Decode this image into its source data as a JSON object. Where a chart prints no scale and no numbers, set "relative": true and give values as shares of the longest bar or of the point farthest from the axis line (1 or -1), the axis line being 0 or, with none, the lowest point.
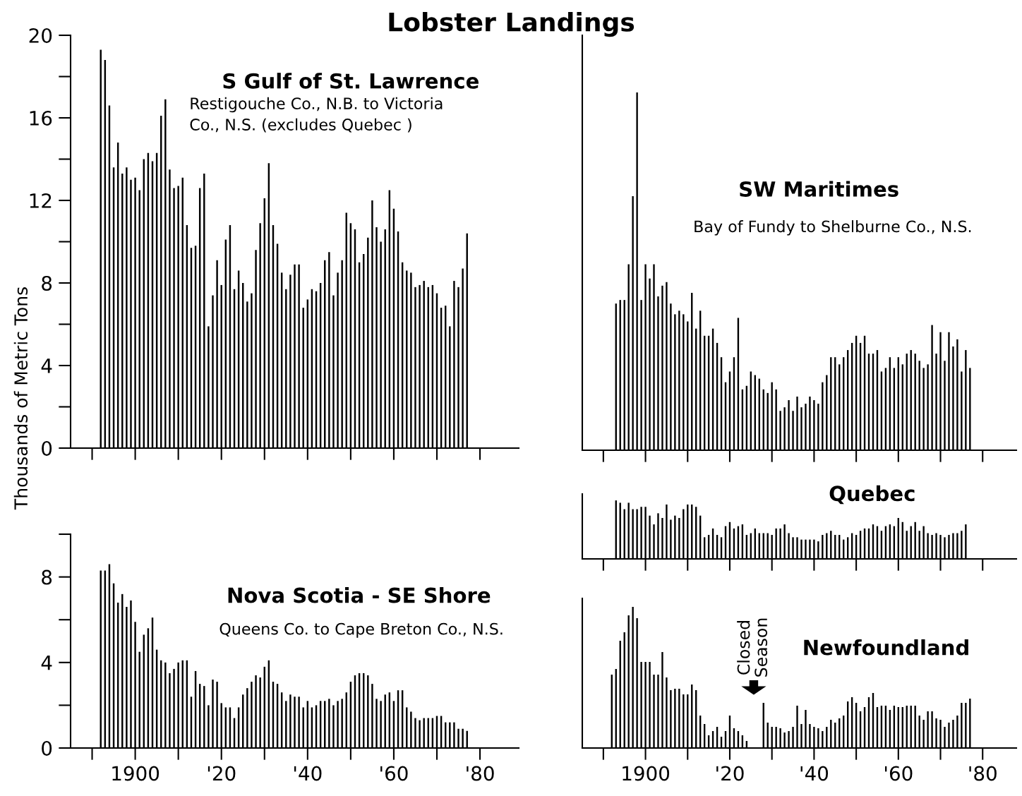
{
  "chart_data": [
    {
      "type": "bar",
      "title": "S Gulf of St. Lawrence",
      "subtitle": "Restigouche Co., N.B. to Victoria\nCo., N.S. (excludes Quebec )",
      "ylabel": "Thousands of Metric Tons",
      "annotations": [
        "Lobster Landings"
      ],
      "color": "#000000",
      "x": [
        1892,
        1893,
        1894,
        1895,
        1896,
        1897,
        1898,
        1899,
        1900,
        1901,
        1902,
        1903,
        1904,
        1905,
        1906,
        1907,
        1908,
        1909,
        1910,
        1911,
        1912,
        1913,
        1914,
        1915,
        1916,
        1917,
        1918,
        1919,
        1920,
        1921,
        1922,
        1923,
        1924,
        1925,
        1926,
        1927,
        1928,
        1929,
        1930,
        1931,
        1932,
        1933,
        1934,
        1935,
        1936,
        1937,
        1938,
        1939,
        1940,
        1941,
        1942,
        1943,
        1944,
        1945,
        1946,
        1947,
        1948,
        1949,
        1950,
        1951,
        1952,
        1953,
        1954,
        1955,
        1956,
        1957,
        1958,
        1959,
        1960,
        1961,
        1962,
        1963,
        1964,
        1965,
        1966,
        1967,
        1968,
        1969,
        1970,
        1971,
        1972,
        1973,
        1974,
        1975,
        1976,
        1977
      ],
      "values": [
        19.3,
        18.8,
        16.6,
        13.6,
        14.8,
        13.3,
        13.6,
        13.0,
        13.1,
        12.5,
        14.0,
        14.3,
        13.9,
        14.3,
        16.1,
        16.9,
        13.5,
        12.6,
        12.7,
        13.1,
        10.8,
        9.7,
        9.8,
        12.6,
        13.3,
        5.9,
        7.4,
        9.1,
        7.9,
        10.1,
        10.8,
        7.7,
        8.6,
        8.0,
        7.1,
        7.5,
        9.6,
        10.9,
        12.1,
        13.8,
        10.8,
        9.9,
        8.5,
        7.7,
        8.4,
        8.9,
        8.9,
        6.8,
        7.2,
        7.7,
        7.6,
        8.0,
        9.1,
        9.5,
        7.4,
        8.5,
        9.1,
        11.4,
        10.9,
        10.6,
        9.0,
        9.4,
        10.2,
        12.0,
        10.7,
        10.0,
        10.6,
        12.5,
        11.6,
        10.5,
        9.0,
        8.6,
        8.5,
        7.8,
        7.9,
        8.1,
        7.8,
        7.9,
        7.5,
        6.8,
        6.9,
        5.9,
        8.1,
        7.8,
        8.7,
        10.4
      ],
      "xlim": [
        1885,
        1989
      ],
      "xticks": [
        1900,
        1920,
        1940,
        1960,
        1980
      ],
      "ylim": [
        0,
        20
      ],
      "yticks": [
        0,
        4,
        8,
        12,
        16,
        20
      ],
      "tick_labels": "y"
    },
    {
      "type": "bar",
      "title": "SW Maritimes",
      "subtitle": "Bay of Fundy to Shelburne Co., N.S.",
      "color": "#000000",
      "relative": true,
      "x": [
        1893,
        1894,
        1895,
        1896,
        1897,
        1898,
        1899,
        1900,
        1901,
        1902,
        1903,
        1904,
        1905,
        1906,
        1907,
        1908,
        1909,
        1910,
        1911,
        1912,
        1913,
        1914,
        1915,
        1916,
        1917,
        1918,
        1919,
        1920,
        1921,
        1922,
        1923,
        1924,
        1925,
        1926,
        1927,
        1928,
        1929,
        1930,
        1931,
        1932,
        1933,
        1934,
        1935,
        1936,
        1937,
        1938,
        1939,
        1940,
        1941,
        1942,
        1943,
        1944,
        1945,
        1946,
        1947,
        1948,
        1949,
        1950,
        1951,
        1952,
        1953,
        1954,
        1955,
        1956,
        1957,
        1958,
        1959,
        1960,
        1961,
        1962,
        1963,
        1964,
        1965,
        1966,
        1967,
        1968,
        1969,
        1970,
        1971,
        1972,
        1973,
        1974,
        1975,
        1976,
        1977
      ],
      "values": [
        0.41,
        0.42,
        0.42,
        0.52,
        0.71,
        1,
        0.42,
        0.52,
        0.48,
        0.52,
        0.43,
        0.46,
        0.47,
        0.41,
        0.38,
        0.39,
        0.38,
        0.36,
        0.44,
        0.34,
        0.39,
        0.32,
        0.32,
        0.34,
        0.3,
        0.26,
        0.19,
        0.22,
        0.26,
        0.37,
        0.17,
        0.18,
        0.22,
        0.21,
        0.2,
        0.17,
        0.16,
        0.19,
        0.17,
        0.11,
        0.12,
        0.14,
        0.11,
        0.15,
        0.12,
        0.13,
        0.15,
        0.14,
        0.13,
        0.19,
        0.21,
        0.26,
        0.26,
        0.24,
        0.26,
        0.28,
        0.3,
        0.32,
        0.3,
        0.32,
        0.27,
        0.27,
        0.28,
        0.22,
        0.23,
        0.26,
        0.23,
        0.26,
        0.24,
        0.27,
        0.28,
        0.27,
        0.25,
        0.23,
        0.24,
        0.35,
        0.27,
        0.33,
        0.25,
        0.33,
        0.29,
        0.31,
        0.22,
        0.28,
        0.23
      ],
      "xlim": [
        1885,
        1988
      ],
      "xticks": [
        1900,
        1920,
        1940,
        1960,
        1980
      ],
      "tick_labels": false
    },
    {
      "type": "bar",
      "title": "Quebec",
      "color": "#000000",
      "relative": true,
      "x": [
        1893,
        1894,
        1895,
        1896,
        1897,
        1898,
        1899,
        1900,
        1901,
        1902,
        1903,
        1904,
        1905,
        1906,
        1907,
        1908,
        1909,
        1910,
        1911,
        1912,
        1913,
        1914,
        1915,
        1916,
        1917,
        1918,
        1919,
        1920,
        1921,
        1922,
        1923,
        1924,
        1925,
        1926,
        1927,
        1928,
        1929,
        1930,
        1931,
        1932,
        1933,
        1934,
        1935,
        1936,
        1937,
        1938,
        1939,
        1940,
        1941,
        1942,
        1943,
        1944,
        1945,
        1946,
        1947,
        1948,
        1949,
        1950,
        1951,
        1952,
        1953,
        1954,
        1955,
        1956,
        1957,
        1958,
        1959,
        1960,
        1961,
        1962,
        1963,
        1964,
        1965,
        1966,
        1967,
        1968,
        1969,
        1970,
        1971,
        1972,
        1973,
        1974,
        1975,
        1976
      ],
      "values": [
        1,
        0.96,
        0.85,
        0.96,
        0.85,
        0.85,
        0.89,
        0.89,
        0.74,
        0.59,
        0.78,
        0.7,
        0.93,
        0.67,
        0.74,
        0.7,
        0.85,
        0.93,
        0.93,
        0.89,
        0.74,
        0.37,
        0.41,
        0.52,
        0.41,
        0.37,
        0.56,
        0.63,
        0.52,
        0.56,
        0.59,
        0.41,
        0.44,
        0.52,
        0.44,
        0.44,
        0.44,
        0.41,
        0.52,
        0.52,
        0.59,
        0.44,
        0.37,
        0.37,
        0.33,
        0.33,
        0.33,
        0.33,
        0.3,
        0.41,
        0.44,
        0.48,
        0.41,
        0.41,
        0.33,
        0.37,
        0.44,
        0.41,
        0.48,
        0.52,
        0.52,
        0.59,
        0.56,
        0.48,
        0.56,
        0.59,
        0.56,
        0.7,
        0.63,
        0.48,
        0.56,
        0.63,
        0.48,
        0.56,
        0.44,
        0.41,
        0.44,
        0.41,
        0.37,
        0.41,
        0.44,
        0.44,
        0.48,
        0.59
      ],
      "xlim": [
        1885,
        1988
      ],
      "xticks": [
        1900,
        1920,
        1940,
        1960,
        1980
      ],
      "tick_labels": false
    },
    {
      "type": "bar",
      "title": "Nova Scotia - SE Shore",
      "subtitle": "Queens Co. to Cape Breton Co., N.S.",
      "color": "#000000",
      "x": [
        1892,
        1893,
        1894,
        1895,
        1896,
        1897,
        1898,
        1899,
        1900,
        1901,
        1902,
        1903,
        1904,
        1905,
        1906,
        1907,
        1908,
        1909,
        1910,
        1911,
        1912,
        1913,
        1914,
        1915,
        1916,
        1917,
        1918,
        1919,
        1920,
        1921,
        1922,
        1923,
        1924,
        1925,
        1926,
        1927,
        1928,
        1929,
        1930,
        1931,
        1932,
        1933,
        1934,
        1935,
        1936,
        1937,
        1938,
        1939,
        1940,
        1941,
        1942,
        1943,
        1944,
        1945,
        1946,
        1947,
        1948,
        1949,
        1950,
        1951,
        1952,
        1953,
        1954,
        1955,
        1956,
        1957,
        1958,
        1959,
        1960,
        1961,
        1962,
        1963,
        1964,
        1965,
        1966,
        1967,
        1968,
        1969,
        1970,
        1971,
        1972,
        1973,
        1974,
        1975,
        1976,
        1977
      ],
      "values": [
        8.3,
        8.3,
        8.6,
        7.7,
        6.8,
        7.2,
        6.6,
        6.9,
        5.9,
        4.5,
        5.3,
        5.6,
        6.1,
        4.6,
        4.1,
        4.0,
        3.5,
        3.7,
        4.0,
        4.1,
        4.1,
        2.4,
        3.6,
        3.0,
        2.9,
        2.0,
        3.2,
        3.1,
        2.1,
        1.9,
        1.9,
        1.4,
        1.9,
        2.5,
        2.8,
        3.1,
        3.4,
        3.3,
        3.8,
        4.1,
        3.1,
        3.0,
        2.6,
        2.2,
        2.5,
        2.4,
        2.4,
        1.9,
        2.2,
        1.9,
        2.0,
        2.2,
        2.2,
        2.3,
        2.0,
        2.2,
        2.3,
        2.6,
        3.1,
        3.4,
        3.5,
        3.5,
        3.4,
        3.0,
        2.3,
        2.2,
        2.5,
        2.6,
        2.2,
        2.7,
        2.7,
        1.9,
        1.7,
        1.4,
        1.3,
        1.4,
        1.4,
        1.4,
        1.5,
        1.5,
        1.2,
        1.2,
        1.2,
        0.9,
        0.9,
        0.8
      ],
      "xlim": [
        1885,
        1989
      ],
      "xticks": [
        1900,
        {
          "value": 1920,
          "label": "'20"
        },
        {
          "value": 1940,
          "label": "'40"
        },
        {
          "value": 1960,
          "label": "'60"
        },
        {
          "value": 1980,
          "label": "'80"
        }
      ],
      "ylim": [
        0,
        10
      ],
      "yticks": [
        0,
        4,
        8
      ]
    },
    {
      "type": "bar",
      "title": "Newfoundland",
      "annotations": [
        "Closed\nSeason"
      ],
      "color": "#000000",
      "relative": true,
      "x": [
        1892,
        1893,
        1894,
        1895,
        1896,
        1897,
        1898,
        1899,
        1900,
        1901,
        1902,
        1903,
        1904,
        1905,
        1906,
        1907,
        1908,
        1909,
        1910,
        1911,
        1912,
        1913,
        1914,
        1915,
        1916,
        1917,
        1918,
        1919,
        1920,
        1921,
        1922,
        1923,
        1924,
        1925,
        1926,
        1927,
        1928,
        1929,
        1930,
        1931,
        1932,
        1933,
        1934,
        1935,
        1936,
        1937,
        1938,
        1939,
        1940,
        1941,
        1942,
        1943,
        1944,
        1945,
        1946,
        1947,
        1948,
        1949,
        1950,
        1951,
        1952,
        1953,
        1954,
        1955,
        1956,
        1957,
        1958,
        1959,
        1960,
        1961,
        1962,
        1963,
        1964,
        1965,
        1966,
        1967,
        1968,
        1969,
        1970,
        1971,
        1972,
        1973,
        1974,
        1975,
        1976,
        1977
      ],
      "values": [
        0.52,
        0.56,
        0.76,
        0.82,
        0.94,
        1,
        0.92,
        0.61,
        0.61,
        0.61,
        0.52,
        0.52,
        0.68,
        0.5,
        0.41,
        0.42,
        0.42,
        0.38,
        0.38,
        0.45,
        0.41,
        0.23,
        0.17,
        0.09,
        0.12,
        0.15,
        0.08,
        0.12,
        0.23,
        0.14,
        0.12,
        0.09,
        0.05,
        null,
        null,
        null,
        0.32,
        0.18,
        0.15,
        0.15,
        0.14,
        0.11,
        0.12,
        0.15,
        0.3,
        0.17,
        0.27,
        0.17,
        0.15,
        0.14,
        0.12,
        0.15,
        0.2,
        0.18,
        0.21,
        0.23,
        0.33,
        0.36,
        0.32,
        0.26,
        0.29,
        0.36,
        0.39,
        0.29,
        0.3,
        0.3,
        0.27,
        0.3,
        0.29,
        0.29,
        0.3,
        0.3,
        0.3,
        0.23,
        0.2,
        0.26,
        0.26,
        0.21,
        0.2,
        0.15,
        0.18,
        0.2,
        0.23,
        0.32,
        0.32,
        0.35
      ],
      "xlim": [
        1885,
        1988
      ],
      "xticks": [
        1900,
        {
          "value": 1920,
          "label": "'20"
        },
        {
          "value": 1940,
          "label": "'40"
        },
        {
          "value": 1960,
          "label": "'60"
        },
        {
          "value": 1980,
          "label": "'80"
        }
      ],
      "tick_labels": "x"
    }
  ]
}
